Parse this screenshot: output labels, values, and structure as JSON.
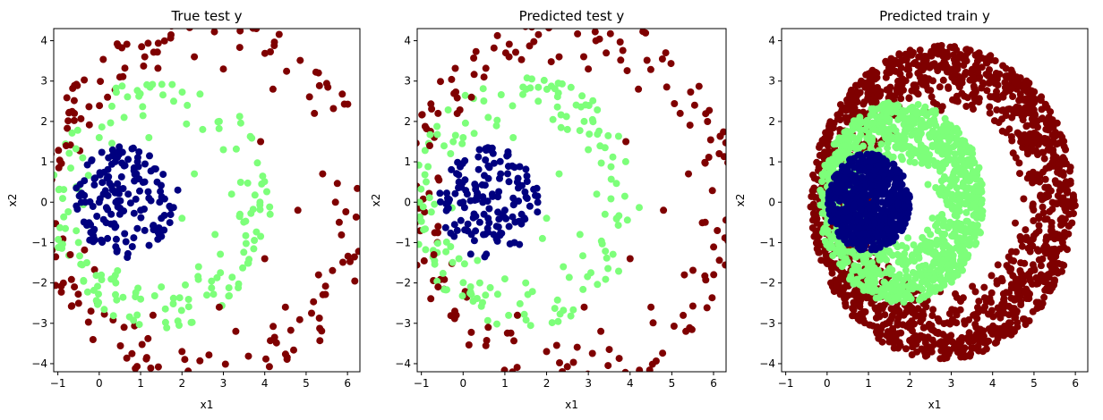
{
  "colors": {
    "outer": "#7f0000",
    "middle": "#7dff7a",
    "inner": "#00007f"
  },
  "chart_data": [
    {
      "type": "scatter",
      "title": "True test y",
      "xlabel": "x1",
      "ylabel": "x2",
      "xlim": [
        -1.1,
        6.3
      ],
      "ylim": [
        -4.2,
        4.3
      ],
      "xticks": [
        -1,
        0,
        1,
        2,
        3,
        4,
        5,
        6
      ],
      "yticks": [
        -4,
        -3,
        -2,
        -1,
        0,
        1,
        2,
        3,
        4
      ],
      "point_count_estimate": 500,
      "classes": [
        {
          "name": "0",
          "color": "#00007f",
          "points": [
            [
              0,
              0
            ],
            [
              0.3,
              0.4
            ],
            [
              0.5,
              -0.3
            ],
            [
              0.9,
              0.7
            ],
            [
              1.2,
              0.1
            ],
            [
              0.2,
              -0.9
            ],
            [
              0.8,
              -1.1
            ],
            [
              1.5,
              -0.4
            ],
            [
              1.9,
              0.3
            ],
            [
              0.6,
              0.9
            ],
            [
              -0.1,
              0.6
            ],
            [
              1.1,
              -0.7
            ],
            [
              0.4,
              -0.6
            ],
            [
              1.4,
              0.5
            ],
            [
              0.1,
              0.2
            ],
            [
              1.7,
              -0.1
            ],
            [
              0.7,
              0.2
            ],
            [
              1.0,
              -0.2
            ]
          ]
        },
        {
          "name": "1",
          "color": "#7dff7a",
          "points": [
            [
              -0.4,
              1.1
            ],
            [
              -0.5,
              -1.0
            ],
            [
              0.6,
              2.1
            ],
            [
              1.8,
              2.5
            ],
            [
              2.5,
              1.8
            ],
            [
              3.0,
              1.3
            ],
            [
              3.2,
              0.2
            ],
            [
              2.8,
              -0.8
            ],
            [
              2.4,
              -1.6
            ],
            [
              1.5,
              -2.1
            ],
            [
              0.4,
              -2.0
            ],
            [
              -0.3,
              -1.5
            ],
            [
              2.0,
              -0.4
            ],
            [
              2.3,
              0.7
            ],
            [
              1.2,
              1.6
            ],
            [
              0.0,
              1.6
            ],
            [
              2.9,
              2.0
            ],
            [
              3.4,
              -0.3
            ],
            [
              1.0,
              -2.4
            ],
            [
              2.6,
              -2.3
            ]
          ]
        },
        {
          "name": "2",
          "color": "#7f0000",
          "points": [
            [
              -0.8,
              1.4
            ],
            [
              -0.7,
              -1.3
            ],
            [
              0.5,
              3.1
            ],
            [
              1.1,
              3.6
            ],
            [
              2.3,
              3.6
            ],
            [
              3.0,
              3.3
            ],
            [
              4.2,
              2.8
            ],
            [
              5.2,
              2.2
            ],
            [
              5.4,
              0.7
            ],
            [
              5.8,
              -0.5
            ],
            [
              5.3,
              -1.8
            ],
            [
              4.5,
              -2.6
            ],
            [
              3.3,
              -3.2
            ],
            [
              2.0,
              -3.7
            ],
            [
              0.6,
              -3.1
            ],
            [
              -0.2,
              -2.7
            ],
            [
              -0.6,
              -2.1
            ],
            [
              -0.6,
              2.2
            ],
            [
              3.9,
              1.5
            ],
            [
              4.8,
              -0.2
            ],
            [
              4.0,
              -1.4
            ],
            [
              2.9,
              -2.6
            ],
            [
              1.3,
              -2.8
            ],
            [
              0.2,
              2.6
            ]
          ]
        }
      ]
    },
    {
      "type": "scatter",
      "title": "Predicted test y",
      "xlabel": "x1",
      "ylabel": "x2",
      "xlim": [
        -1.1,
        6.3
      ],
      "ylim": [
        -4.2,
        4.3
      ],
      "xticks": [
        -1,
        0,
        1,
        2,
        3,
        4,
        5,
        6
      ],
      "yticks": [
        -4,
        -3,
        -2,
        -1,
        0,
        1,
        2,
        3,
        4
      ],
      "point_count_estimate": 500,
      "classes": [
        {
          "name": "0",
          "color": "#00007f",
          "points": [
            [
              0,
              0
            ],
            [
              0.3,
              0.4
            ],
            [
              0.5,
              -0.3
            ],
            [
              0.9,
              0.7
            ],
            [
              1.2,
              0.1
            ],
            [
              0.2,
              -0.8
            ],
            [
              0.8,
              -0.9
            ],
            [
              1.4,
              -0.3
            ],
            [
              0.6,
              0.9
            ],
            [
              -0.1,
              0.5
            ],
            [
              1.1,
              -0.6
            ],
            [
              0.4,
              -0.5
            ],
            [
              1.3,
              0.5
            ],
            [
              0.1,
              0.2
            ],
            [
              1.6,
              -0.1
            ],
            [
              0.7,
              0.2
            ],
            [
              1.0,
              -0.2
            ]
          ]
        },
        {
          "name": "1",
          "color": "#7dff7a",
          "points": [
            [
              -0.3,
              1.2
            ],
            [
              -0.3,
              -1.1
            ],
            [
              0.6,
              2.1
            ],
            [
              1.8,
              2.5
            ],
            [
              2.5,
              1.8
            ],
            [
              3.0,
              1.3
            ],
            [
              3.2,
              0.2
            ],
            [
              2.8,
              -0.8
            ],
            [
              2.4,
              -1.6
            ],
            [
              1.5,
              -2.0
            ],
            [
              0.4,
              -2.0
            ],
            [
              -0.1,
              -1.4
            ],
            [
              2.0,
              -0.4
            ],
            [
              2.3,
              0.7
            ],
            [
              1.2,
              1.6
            ],
            [
              0.0,
              1.6
            ],
            [
              2.9,
              2.0
            ],
            [
              3.4,
              -0.3
            ],
            [
              1.0,
              -1.9
            ],
            [
              1.9,
              -0.9
            ]
          ]
        },
        {
          "name": "2",
          "color": "#7f0000",
          "points": [
            [
              -0.8,
              1.4
            ],
            [
              -0.7,
              -1.3
            ],
            [
              0.5,
              3.1
            ],
            [
              1.1,
              3.6
            ],
            [
              2.3,
              3.6
            ],
            [
              3.0,
              3.3
            ],
            [
              4.2,
              2.8
            ],
            [
              5.2,
              2.2
            ],
            [
              5.4,
              0.7
            ],
            [
              5.8,
              -0.5
            ],
            [
              5.3,
              -1.8
            ],
            [
              4.5,
              -2.6
            ],
            [
              3.3,
              -3.2
            ],
            [
              2.0,
              -3.7
            ],
            [
              0.6,
              -3.1
            ],
            [
              -0.2,
              -2.7
            ],
            [
              -0.6,
              -2.1
            ],
            [
              -0.6,
              2.2
            ],
            [
              3.9,
              1.5
            ],
            [
              4.8,
              -0.2
            ],
            [
              4.0,
              -1.4
            ],
            [
              2.9,
              -2.6
            ],
            [
              1.3,
              -2.8
            ],
            [
              0.2,
              2.6
            ],
            [
              -0.6,
              0.6
            ],
            [
              -0.6,
              -0.6
            ]
          ]
        }
      ]
    },
    {
      "type": "scatter",
      "title": "Predicted train y",
      "xlabel": "x1",
      "ylabel": "x2",
      "xlim": [
        -1.1,
        6.3
      ],
      "ylim": [
        -4.2,
        4.3
      ],
      "xticks": [
        -1,
        0,
        1,
        2,
        3,
        4,
        5,
        6
      ],
      "yticks": [
        -4,
        -3,
        -2,
        -1,
        0,
        1,
        2,
        3,
        4
      ],
      "point_count_estimate": 2000,
      "classes": [
        {
          "name": "0",
          "color": "#00007f",
          "region": {
            "cx": 1.0,
            "cy": 0.0,
            "rx": 1.0,
            "ry": 1.2
          }
        },
        {
          "name": "1",
          "color": "#7dff7a",
          "region": {
            "cx": 1.8,
            "cy": 0.0,
            "rx": 2.0,
            "ry": 2.5
          }
        },
        {
          "name": "2",
          "color": "#7f0000",
          "region": {
            "cx": 2.8,
            "cy": 0.0,
            "rx": 3.2,
            "ry": 3.9
          }
        }
      ]
    }
  ]
}
